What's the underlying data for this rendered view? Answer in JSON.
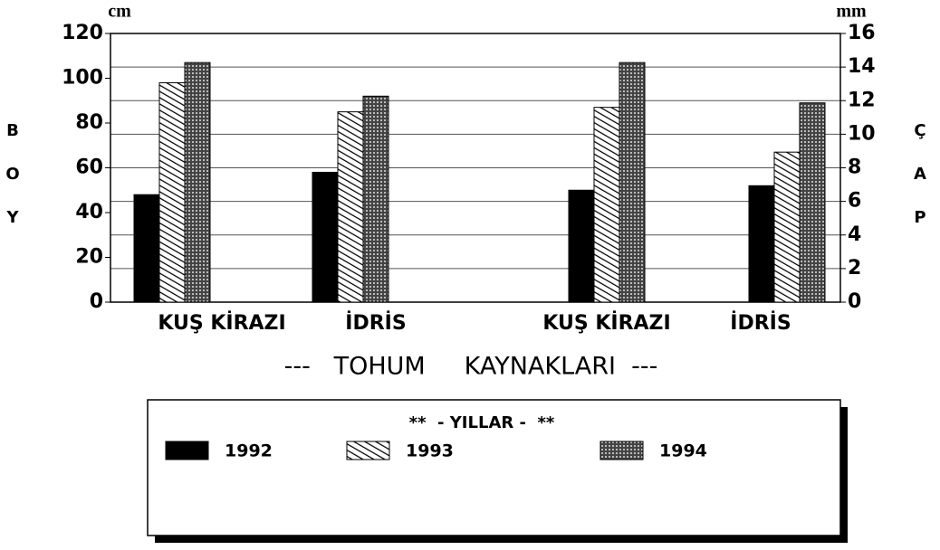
{
  "chart_data": {
    "type": "bar",
    "y_unit": "cm",
    "y2_unit": "mm",
    "ylabel": [
      "B",
      "O",
      "Y"
    ],
    "y2label": [
      "Ç",
      "A",
      "P"
    ],
    "xlabel": "---   TOHUM     KAYNAKLARI  ---",
    "categories": [
      "KUŞ  KİRAZI",
      "İDRİS",
      "KUŞ  KİRAZI",
      "İDRİS"
    ],
    "legend_title": "**  - YILLAR -  **",
    "series": [
      {
        "name": "1992",
        "color": "#000000",
        "values": [
          48,
          58,
          50,
          52
        ]
      },
      {
        "name": "1993",
        "color": "hatch",
        "values": [
          98,
          85,
          87,
          67
        ]
      },
      {
        "name": "1994",
        "color": "crosshatch",
        "values": [
          107,
          92,
          107,
          89
        ]
      }
    ],
    "ylim": [
      0,
      120
    ],
    "yticks": [
      0,
      20,
      40,
      60,
      80,
      100,
      120
    ],
    "y2lim": [
      0,
      16
    ],
    "y2ticks": [
      0,
      2,
      4,
      6,
      8,
      10,
      12,
      14,
      16
    ],
    "grid": true
  }
}
